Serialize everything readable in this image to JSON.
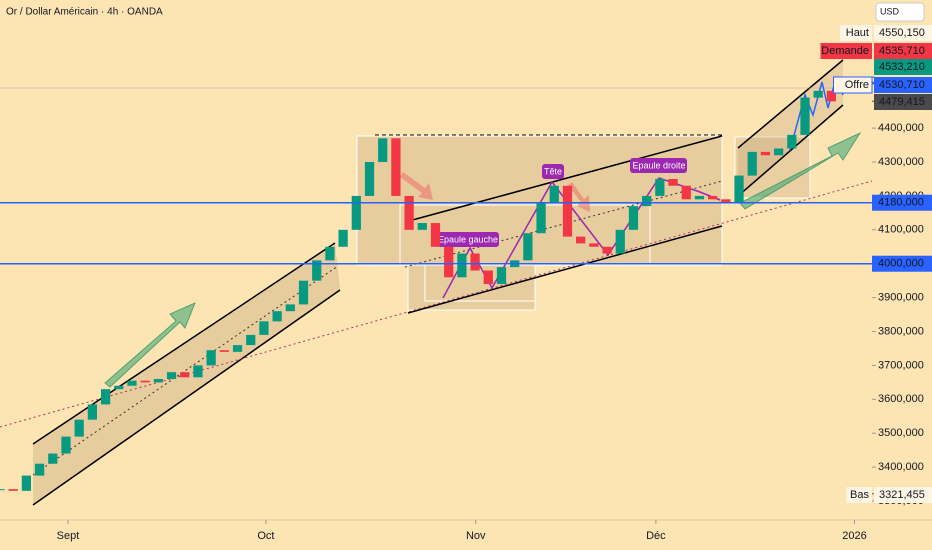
{
  "header": {
    "title": "Or / Dollar Américain · 4h · OANDA",
    "currency": "USD"
  },
  "chart_data": {
    "type": "candlestick",
    "x": [
      0,
      2,
      4,
      6,
      8,
      10,
      12,
      14,
      16,
      18,
      20,
      22,
      24,
      26,
      28,
      30,
      32,
      34,
      36,
      38,
      40,
      42,
      44,
      46,
      48,
      50,
      52,
      54,
      56,
      58,
      60,
      62,
      64,
      66,
      68,
      70,
      72,
      74,
      76,
      78,
      80,
      82,
      84,
      86,
      88,
      90,
      92,
      94,
      96,
      98,
      100,
      102,
      104,
      106,
      108,
      110,
      112,
      114,
      116,
      118,
      120,
      122,
      124,
      126
    ],
    "values": [
      3335,
      3330,
      3375,
      3410,
      3440,
      3490,
      3540,
      3585,
      3630,
      3640,
      3655,
      3650,
      3660,
      3680,
      3665,
      3700,
      3745,
      3740,
      3760,
      3790,
      3830,
      3860,
      3880,
      3950,
      4010,
      4050,
      4100,
      4200,
      4300,
      4370,
      4200,
      4100,
      4120,
      4050,
      3960,
      4030,
      3980,
      3940,
      3990,
      4010,
      4090,
      4180,
      4230,
      4080,
      4060,
      4050,
      4030,
      4100,
      4170,
      4200,
      4250,
      4230,
      4190,
      4200,
      4190,
      4180,
      4260,
      4330,
      4320,
      4340,
      4380,
      4490,
      4510,
      4479
    ],
    "up_color": "#089981",
    "down_color": "#f23645",
    "xlim": [
      0,
      132
    ],
    "xticks": [
      {
        "value": 10.3,
        "label": "Sept"
      },
      {
        "value": 40.3,
        "label": "Oct"
      },
      {
        "value": 72.1,
        "label": "Nov"
      },
      {
        "value": 99.4,
        "label": "Déc"
      },
      {
        "value": 129.5,
        "label": "2026"
      }
    ],
    "ylim": [
      3244,
      4778
    ],
    "yticks": [
      {
        "value": 3300,
        "label": "3300,000"
      },
      {
        "value": 3400,
        "label": "3400,000"
      },
      {
        "value": 3500,
        "label": "3500,000"
      },
      {
        "value": 3600,
        "label": "3600,000"
      },
      {
        "value": 3700,
        "label": "3700,000"
      },
      {
        "value": 3800,
        "label": "3800,000"
      },
      {
        "value": 3900,
        "label": "3900,000"
      },
      {
        "value": 4000,
        "label": "4000,000"
      },
      {
        "value": 4100,
        "label": "4100,000"
      },
      {
        "value": 4200,
        "label": "4200,000"
      },
      {
        "value": 4300,
        "label": "4300,000"
      },
      {
        "value": 4400,
        "label": "4400,000"
      }
    ],
    "levels": {
      "color": "#2962ff",
      "items": [
        {
          "value": 4180,
          "label": "4180,000"
        },
        {
          "value": 4000,
          "label": "4000,000"
        }
      ]
    },
    "price_tags": [
      {
        "name": "Haut",
        "value": 4550.15,
        "label": "4550,150"
      },
      {
        "name": "Demande",
        "value": 4535.71,
        "label": "4535,710",
        "color": "#f23645"
      },
      {
        "value": 4533.21,
        "label": "4533,210",
        "color": "#089981"
      },
      {
        "name": "Offre",
        "value": 4530.71,
        "label": "4530,710",
        "color": "#2962ff"
      },
      {
        "value": 4479.415,
        "label": "4479,415",
        "color": "#4a4a4a"
      },
      {
        "name": "Bas",
        "value": 3321.455,
        "label": "3321,455"
      }
    ],
    "annotations": [
      "Epaule gauche",
      "Tête",
      "Epaule droite"
    ]
  }
}
